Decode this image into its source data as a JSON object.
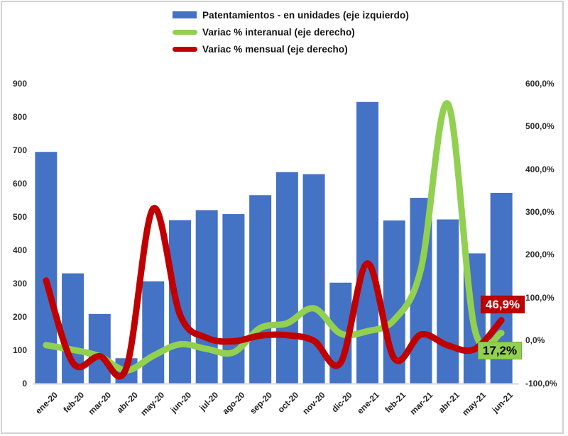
{
  "legend": {
    "items": [
      {
        "label": "Patentamientos - en unidades (eje izquierdo)",
        "marker": "bar",
        "color": "#4472C4"
      },
      {
        "label": "Variac % interanual (eje derecho)",
        "marker": "line",
        "color": "#92D050"
      },
      {
        "label": "Variac % mensual (eje derecho)",
        "marker": "line",
        "color": "#C00000"
      }
    ]
  },
  "callouts": {
    "mensual": {
      "label": "46,9%",
      "bg": "#C00000",
      "text_color": "#FFFFFF"
    },
    "interanual": {
      "label": "17,2%",
      "bg": "#92D050",
      "text_color": "#000000"
    }
  },
  "chart_data": {
    "type": "bar",
    "subtype": "combo bar + smoothed lines, dual axis",
    "categories": [
      "ene-20",
      "feb-20",
      "mar-20",
      "abr-20",
      "may-20",
      "jun-20",
      "jul-20",
      "ago-20",
      "sep-20",
      "oct-20",
      "nov-20",
      "dic-20",
      "ene-21",
      "feb-21",
      "mar-21",
      "abr-21",
      "may-21",
      "jun-21"
    ],
    "series": [
      {
        "name": "Patentamientos - en unidades",
        "type": "bar",
        "axis": "left",
        "color": "#4472C4",
        "values": [
          695,
          330,
          208,
          75,
          306,
          490,
          520,
          508,
          565,
          634,
          628,
          302,
          845,
          489,
          557,
          492,
          390,
          572
        ]
      },
      {
        "name": "Variac % interanual",
        "type": "line",
        "axis": "right",
        "color": "#92D050",
        "values": [
          -11.0,
          -22.0,
          -37.0,
          -70.0,
          -36.0,
          -9.0,
          -20.0,
          -28.0,
          29.0,
          40.0,
          75.0,
          16.0,
          21.6,
          48.2,
          167.8,
          553.0,
          27.5,
          17.2
        ]
      },
      {
        "name": "Variac % mensual",
        "type": "line",
        "axis": "right",
        "color": "#C00000",
        "values": [
          140.0,
          -52.5,
          -37.0,
          -63.9,
          308.0,
          60.1,
          6.1,
          -2.3,
          11.2,
          12.2,
          -0.9,
          -51.9,
          179.8,
          -42.1,
          13.9,
          -11.7,
          -20.7,
          46.9
        ]
      }
    ],
    "left_axis": {
      "min": 0,
      "max": 900,
      "tick_values": [
        0,
        100,
        200,
        300,
        400,
        500,
        600,
        700,
        800,
        900
      ],
      "tick_labels": [
        "0",
        "100",
        "200",
        "300",
        "400",
        "500",
        "600",
        "700",
        "800",
        "900"
      ]
    },
    "right_axis": {
      "min": -100,
      "max": 600,
      "tick_values": [
        -100,
        0,
        100,
        200,
        300,
        400,
        500,
        600
      ],
      "tick_labels": [
        "-100,0%",
        "0,0%",
        "100,0%",
        "200,0%",
        "300,0%",
        "400,0%",
        "500,0%",
        "600,0%"
      ]
    },
    "grid": false,
    "legend_position": "top",
    "title": "",
    "xlabel": "",
    "ylabel": ""
  }
}
